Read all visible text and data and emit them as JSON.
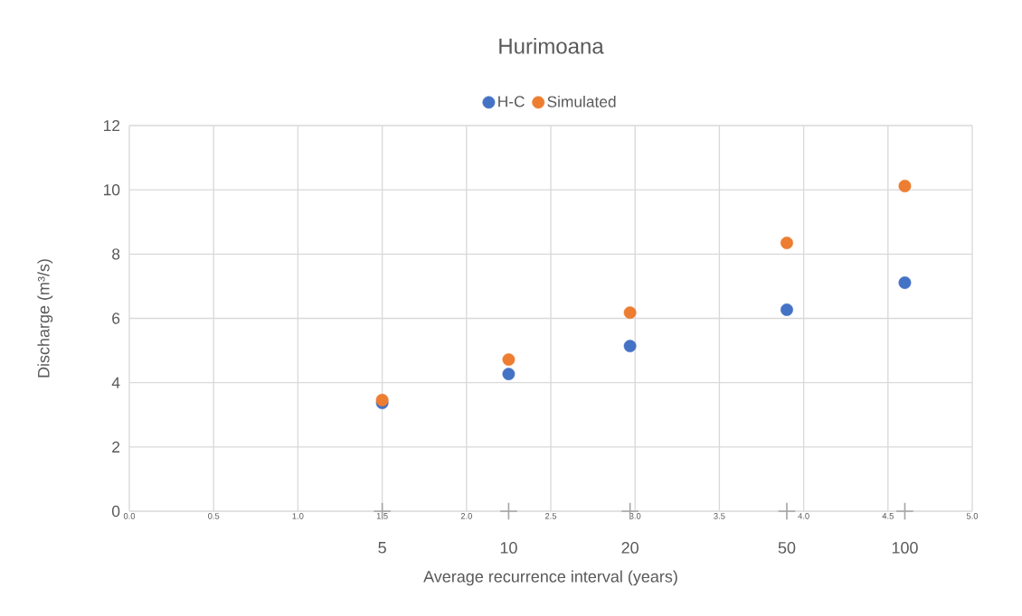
{
  "chart_data": {
    "type": "scatter",
    "title": "Hurimoana",
    "xlabel": "Average recurrence interval (years)",
    "ylabel": "Discharge (m³/s)",
    "series": [
      {
        "name": "H-C",
        "color": "#4472c4",
        "x": [
          1.5,
          2.25,
          2.97,
          3.9,
          4.6
        ],
        "values": [
          3.37,
          4.27,
          5.14,
          6.27,
          7.11
        ]
      },
      {
        "name": "Simulated",
        "color": "#ed7d31",
        "x": [
          1.5,
          2.25,
          2.97,
          3.9,
          4.6
        ],
        "values": [
          3.46,
          4.72,
          6.18,
          8.35,
          10.12
        ]
      },
      {
        "color": "#a5a5a5",
        "marker": "cross",
        "x": [
          1.5,
          2.25,
          2.97,
          3.9,
          4.6
        ],
        "values": [
          0,
          0,
          0,
          0,
          0
        ]
      }
    ],
    "annotations": [
      {
        "text": "5",
        "x": 1.5,
        "y": 0
      },
      {
        "text": "10",
        "x": 2.25,
        "y": 0
      },
      {
        "text": "20",
        "x": 2.97,
        "y": 0
      },
      {
        "text": "50",
        "x": 3.9,
        "y": 0
      },
      {
        "text": "100",
        "x": 4.6,
        "y": 0
      }
    ],
    "xlim": [
      0,
      5
    ],
    "xticks": [
      {
        "value": 0,
        "label": "0.0"
      },
      {
        "value": 0.5,
        "label": "0.5"
      },
      {
        "value": 1,
        "label": "1.0"
      },
      {
        "value": 1.5,
        "label": "1.5"
      },
      {
        "value": 2,
        "label": "2.0"
      },
      {
        "value": 2.5,
        "label": "2.5"
      },
      {
        "value": 3,
        "label": "3.0"
      },
      {
        "value": 3.5,
        "label": "3.5"
      },
      {
        "value": 4,
        "label": "4.0"
      },
      {
        "value": 4.5,
        "label": "4.5"
      },
      {
        "value": 5,
        "label": "5.0"
      }
    ],
    "ylim": [
      0,
      12
    ],
    "yticks": [
      0,
      2,
      4,
      6,
      8,
      10,
      12
    ],
    "grid": true,
    "legend": "top",
    "marker": "circle"
  }
}
